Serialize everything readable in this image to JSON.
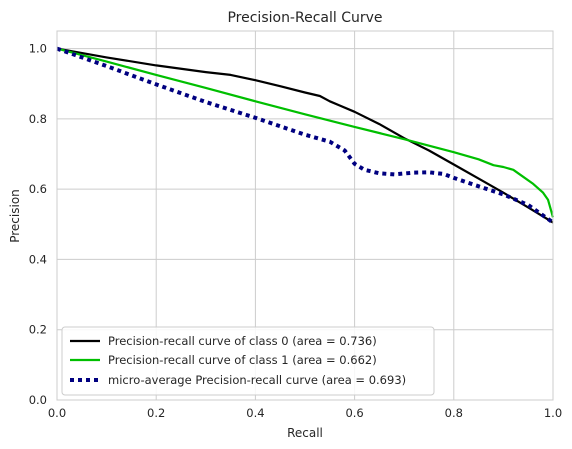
{
  "chart_data": {
    "type": "line",
    "title": "Precision-Recall Curve",
    "xlabel": "Recall",
    "ylabel": "Precision",
    "xlim": [
      0,
      1
    ],
    "ylim": [
      0,
      1.05
    ],
    "xticks": [
      "0.0",
      "0.2",
      "0.4",
      "0.6",
      "0.8",
      "1.0"
    ],
    "yticks": [
      "0.0",
      "0.2",
      "0.4",
      "0.6",
      "0.8",
      "1.0"
    ],
    "grid": true,
    "legend_position": "lower-left",
    "series": [
      {
        "name": "Precision-recall curve of class 0 (area = 0.736)",
        "color": "#000000",
        "dash": "solid",
        "points": [
          [
            0,
            1.0
          ],
          [
            0.1,
            0.975
          ],
          [
            0.2,
            0.952
          ],
          [
            0.3,
            0.933
          ],
          [
            0.35,
            0.925
          ],
          [
            0.4,
            0.91
          ],
          [
            0.45,
            0.893
          ],
          [
            0.5,
            0.875
          ],
          [
            0.53,
            0.865
          ],
          [
            0.55,
            0.85
          ],
          [
            0.57,
            0.838
          ],
          [
            0.6,
            0.82
          ],
          [
            0.65,
            0.785
          ],
          [
            0.7,
            0.745
          ],
          [
            0.75,
            0.71
          ],
          [
            0.8,
            0.67
          ],
          [
            0.85,
            0.63
          ],
          [
            0.9,
            0.59
          ],
          [
            0.95,
            0.548
          ],
          [
            1.0,
            0.505
          ]
        ]
      },
      {
        "name": "Precision-recall curve of class 1 (area = 0.662)",
        "color": "#00bf00",
        "dash": "solid",
        "points": [
          [
            0,
            1.0
          ],
          [
            0.1,
            0.963
          ],
          [
            0.2,
            0.925
          ],
          [
            0.3,
            0.888
          ],
          [
            0.4,
            0.85
          ],
          [
            0.5,
            0.813
          ],
          [
            0.6,
            0.777
          ],
          [
            0.7,
            0.742
          ],
          [
            0.8,
            0.705
          ],
          [
            0.85,
            0.685
          ],
          [
            0.88,
            0.668
          ],
          [
            0.9,
            0.663
          ],
          [
            0.92,
            0.655
          ],
          [
            0.94,
            0.635
          ],
          [
            0.96,
            0.615
          ],
          [
            0.98,
            0.59
          ],
          [
            0.99,
            0.57
          ],
          [
            1.0,
            0.52
          ]
        ]
      },
      {
        "name": "micro-average Precision-recall curve (area = 0.693)",
        "color": "#000080",
        "dash": "dotted",
        "points": [
          [
            0,
            1.0
          ],
          [
            0.1,
            0.95
          ],
          [
            0.2,
            0.898
          ],
          [
            0.3,
            0.848
          ],
          [
            0.4,
            0.803
          ],
          [
            0.5,
            0.755
          ],
          [
            0.55,
            0.735
          ],
          [
            0.58,
            0.71
          ],
          [
            0.6,
            0.672
          ],
          [
            0.62,
            0.655
          ],
          [
            0.65,
            0.645
          ],
          [
            0.68,
            0.642
          ],
          [
            0.72,
            0.647
          ],
          [
            0.75,
            0.648
          ],
          [
            0.78,
            0.643
          ],
          [
            0.8,
            0.632
          ],
          [
            0.85,
            0.608
          ],
          [
            0.9,
            0.585
          ],
          [
            0.95,
            0.555
          ],
          [
            1.0,
            0.505
          ]
        ]
      }
    ]
  }
}
